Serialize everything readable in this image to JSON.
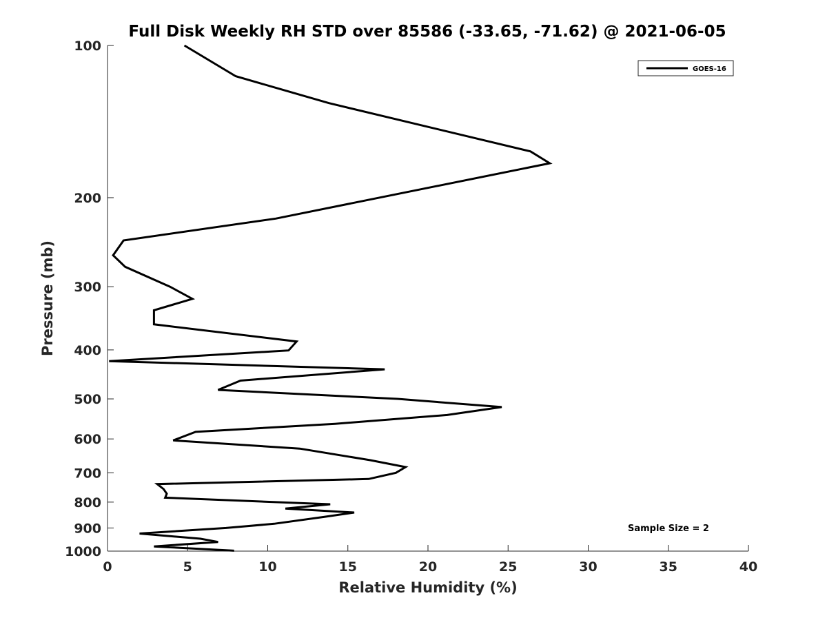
{
  "chart_data": {
    "type": "line",
    "title": "Full Disk Weekly RH STD over 85586 (-33.65, -71.62) @ 2021-06-05",
    "xlabel": "Relative Humidity (%)",
    "ylabel": "Pressure (mb)",
    "xlim": [
      0,
      40
    ],
    "ylim": [
      100,
      1000
    ],
    "yscale": "log",
    "y_reversed": true,
    "grid": false,
    "legend_position": "top-right",
    "x_ticks": [
      0,
      5,
      10,
      15,
      20,
      25,
      30,
      35,
      40
    ],
    "y_ticks": [
      100,
      200,
      300,
      400,
      500,
      600,
      700,
      800,
      900,
      1000
    ],
    "annotation": "Sample Size = 2",
    "series": [
      {
        "name": "GOES-16",
        "color": "#000000",
        "x": [
          4.8,
          8.0,
          13.8,
          26.4,
          27.6,
          10.5,
          1.0,
          0.35,
          1.1,
          3.9,
          5.3,
          2.9,
          2.9,
          11.8,
          11.3,
          0.1,
          17.3,
          8.3,
          6.9,
          18.1,
          24.6,
          21.2,
          14.2,
          5.5,
          4.1,
          12.0,
          16.4,
          18.6,
          18.0,
          16.3,
          3.1,
          3.5,
          3.7,
          3.6,
          13.9,
          11.1,
          15.4,
          13.5,
          10.4,
          7.4,
          2.0,
          5.8,
          6.9,
          2.9,
          7.9
        ],
        "y": [
          100,
          115,
          130,
          162,
          171,
          220,
          243,
          260,
          274,
          300,
          317,
          334,
          356,
          385,
          401,
          421,
          437,
          460,
          480,
          500,
          519,
          538,
          560,
          581,
          604,
          627,
          661,
          682,
          700,
          720,
          737,
          754,
          770,
          784,
          808,
          824,
          839,
          856,
          883,
          900,
          923,
          945,
          959,
          979,
          998
        ]
      }
    ]
  }
}
